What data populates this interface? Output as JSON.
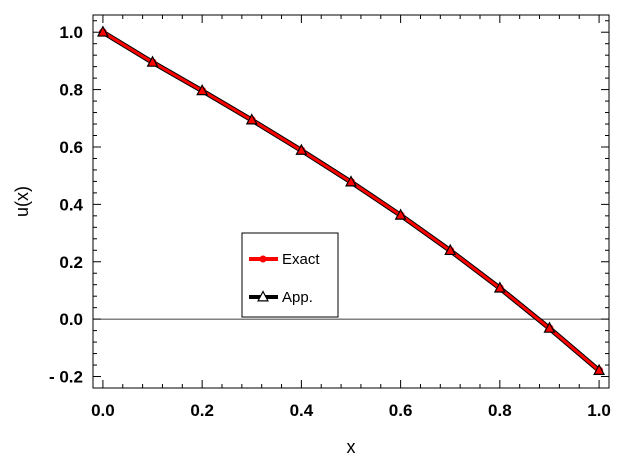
{
  "chart_data": {
    "type": "line",
    "xlabel": "x",
    "ylabel": "u(x)",
    "xlim": [
      -0.02,
      1.02
    ],
    "ylim": [
      -0.24,
      1.06
    ],
    "x_ticks": [
      {
        "value": 0.0,
        "label": "0.0"
      },
      {
        "value": 0.2,
        "label": "0.2"
      },
      {
        "value": 0.4,
        "label": "0.4"
      },
      {
        "value": 0.6,
        "label": "0.6"
      },
      {
        "value": 0.8,
        "label": "0.8"
      },
      {
        "value": 1.0,
        "label": "1.0"
      }
    ],
    "y_ticks": [
      {
        "value": -0.2,
        "label": "- 0.2"
      },
      {
        "value": 0.0,
        "label": "0.0"
      },
      {
        "value": 0.2,
        "label": "0.2"
      },
      {
        "value": 0.4,
        "label": "0.4"
      },
      {
        "value": 0.6,
        "label": "0.6"
      },
      {
        "value": 0.8,
        "label": "0.8"
      },
      {
        "value": 1.0,
        "label": "1.0"
      }
    ],
    "zero_line": true,
    "grid": false,
    "legend_position": "center-left",
    "x": [
      0.0,
      0.1,
      0.2,
      0.3,
      0.4,
      0.5,
      0.6,
      0.7,
      0.8,
      0.9,
      1.0
    ],
    "series": [
      {
        "name": "Exact",
        "color": "#ff0000",
        "marker": "filled-circle",
        "values": [
          1.0,
          0.895,
          0.796,
          0.694,
          0.588,
          0.478,
          0.362,
          0.239,
          0.108,
          -0.032,
          -0.179
        ]
      },
      {
        "name": "App.",
        "color": "#000000",
        "marker": "open-triangle",
        "values": [
          1.0,
          0.895,
          0.796,
          0.694,
          0.588,
          0.478,
          0.362,
          0.239,
          0.108,
          -0.032,
          -0.179
        ]
      }
    ]
  }
}
